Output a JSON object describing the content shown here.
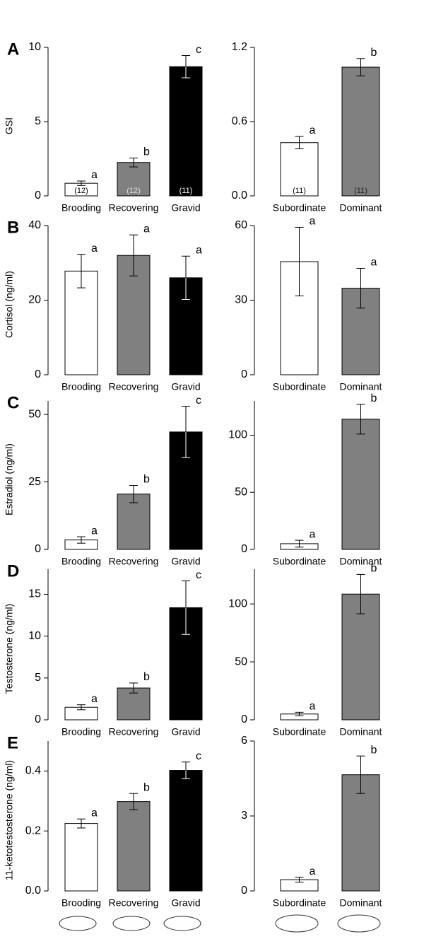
{
  "chart_data": [
    {
      "type": "bar",
      "panel": "A",
      "ylabel": "GSI",
      "categories": [
        "Brooding",
        "Recovering",
        "Gravid"
      ],
      "values": [
        0.85,
        2.25,
        8.7
      ],
      "errors": [
        0.15,
        0.3,
        0.75
      ],
      "colors": [
        "#ffffff",
        "#808080",
        "#000000"
      ],
      "annotations": [
        "a",
        "b",
        "c"
      ],
      "n_labels": [
        "(12)",
        "(12)",
        "(11)"
      ],
      "ylim": [
        0,
        10
      ],
      "yticks": [
        0,
        5,
        10
      ]
    },
    {
      "type": "bar",
      "categories": [
        "Subordinate",
        "Dominant"
      ],
      "values": [
        0.43,
        1.04
      ],
      "errors": [
        0.05,
        0.07
      ],
      "colors": [
        "#ffffff",
        "#808080"
      ],
      "annotations": [
        "a",
        "b"
      ],
      "n_labels": [
        "(11)",
        "(11)"
      ],
      "ylim": [
        0,
        1.2
      ],
      "yticks": [
        {
          "value": 0,
          "label": "0.0"
        },
        0.6,
        1.2
      ]
    },
    {
      "type": "bar",
      "panel": "B",
      "ylabel": "Cortisol (ng/ml)",
      "categories": [
        "Brooding",
        "Recovering",
        "Gravid"
      ],
      "values": [
        27.8,
        32,
        26
      ],
      "errors": [
        4.5,
        5.5,
        5.8
      ],
      "colors": [
        "#ffffff",
        "#808080",
        "#000000"
      ],
      "annotations": [
        "a",
        "a",
        "a"
      ],
      "ylim": [
        0,
        40
      ],
      "yticks": [
        0,
        20,
        40
      ]
    },
    {
      "type": "bar",
      "categories": [
        "Subordinate",
        "Dominant"
      ],
      "values": [
        45.5,
        34.8
      ],
      "errors": [
        13.8,
        8
      ],
      "colors": [
        "#ffffff",
        "#808080"
      ],
      "annotations": [
        "a",
        "a"
      ],
      "ylim": [
        0,
        60
      ],
      "yticks": [
        0,
        30,
        60
      ]
    },
    {
      "type": "bar",
      "panel": "C",
      "ylabel": "Estradiol (ng/ml)",
      "categories": [
        "Brooding",
        "Recovering",
        "Gravid"
      ],
      "values": [
        3.5,
        20.5,
        43.5
      ],
      "errors": [
        1.2,
        3.2,
        9.5
      ],
      "colors": [
        "#ffffff",
        "#808080",
        "#000000"
      ],
      "annotations": [
        "a",
        "b",
        "c"
      ],
      "ylim": [
        0,
        55
      ],
      "yticks": [
        0,
        25,
        50
      ]
    },
    {
      "type": "bar",
      "categories": [
        "Subordinate",
        "Dominant"
      ],
      "values": [
        5,
        114
      ],
      "errors": [
        3,
        13
      ],
      "colors": [
        "#ffffff",
        "#808080"
      ],
      "annotations": [
        "a",
        "b"
      ],
      "ylim": [
        0,
        130
      ],
      "yticks": [
        0,
        50,
        100
      ]
    },
    {
      "type": "bar",
      "panel": "D",
      "ylabel": "Testosterone (ng/ml)",
      "categories": [
        "Brooding",
        "Recovering",
        "Gravid"
      ],
      "values": [
        1.5,
        3.8,
        13.4
      ],
      "errors": [
        0.3,
        0.6,
        3.2
      ],
      "colors": [
        "#ffffff",
        "#808080",
        "#000000"
      ],
      "annotations": [
        "a",
        "b",
        "c"
      ],
      "ylim": [
        0,
        18
      ],
      "yticks": [
        0,
        5,
        10,
        15
      ]
    },
    {
      "type": "bar",
      "categories": [
        "Subordinate",
        "Dominant"
      ],
      "values": [
        5,
        108.5
      ],
      "errors": [
        1.5,
        17
      ],
      "colors": [
        "#ffffff",
        "#808080"
      ],
      "annotations": [
        "a",
        "b"
      ],
      "ylim": [
        0,
        130
      ],
      "yticks": [
        0,
        50,
        100
      ]
    },
    {
      "type": "bar",
      "panel": "E",
      "ylabel": "11-ketotestosterone (ng/ml)",
      "categories": [
        "Brooding",
        "Recovering",
        "Gravid"
      ],
      "values": [
        0.225,
        0.298,
        0.402
      ],
      "errors": [
        0.015,
        0.027,
        0.028
      ],
      "colors": [
        "#ffffff",
        "#808080",
        "#000000"
      ],
      "annotations": [
        "a",
        "b",
        "c"
      ],
      "ylim": [
        0,
        0.5
      ],
      "yticks": [
        {
          "value": 0,
          "label": "0.0"
        },
        0.2,
        0.4
      ]
    },
    {
      "type": "bar",
      "categories": [
        "Subordinate",
        "Dominant"
      ],
      "values": [
        0.45,
        4.65
      ],
      "errors": [
        0.1,
        0.75
      ],
      "colors": [
        "#ffffff",
        "#808080"
      ],
      "annotations": [
        "a",
        "b"
      ],
      "ylim": [
        0,
        6
      ],
      "yticks": [
        0,
        3,
        6
      ]
    }
  ]
}
